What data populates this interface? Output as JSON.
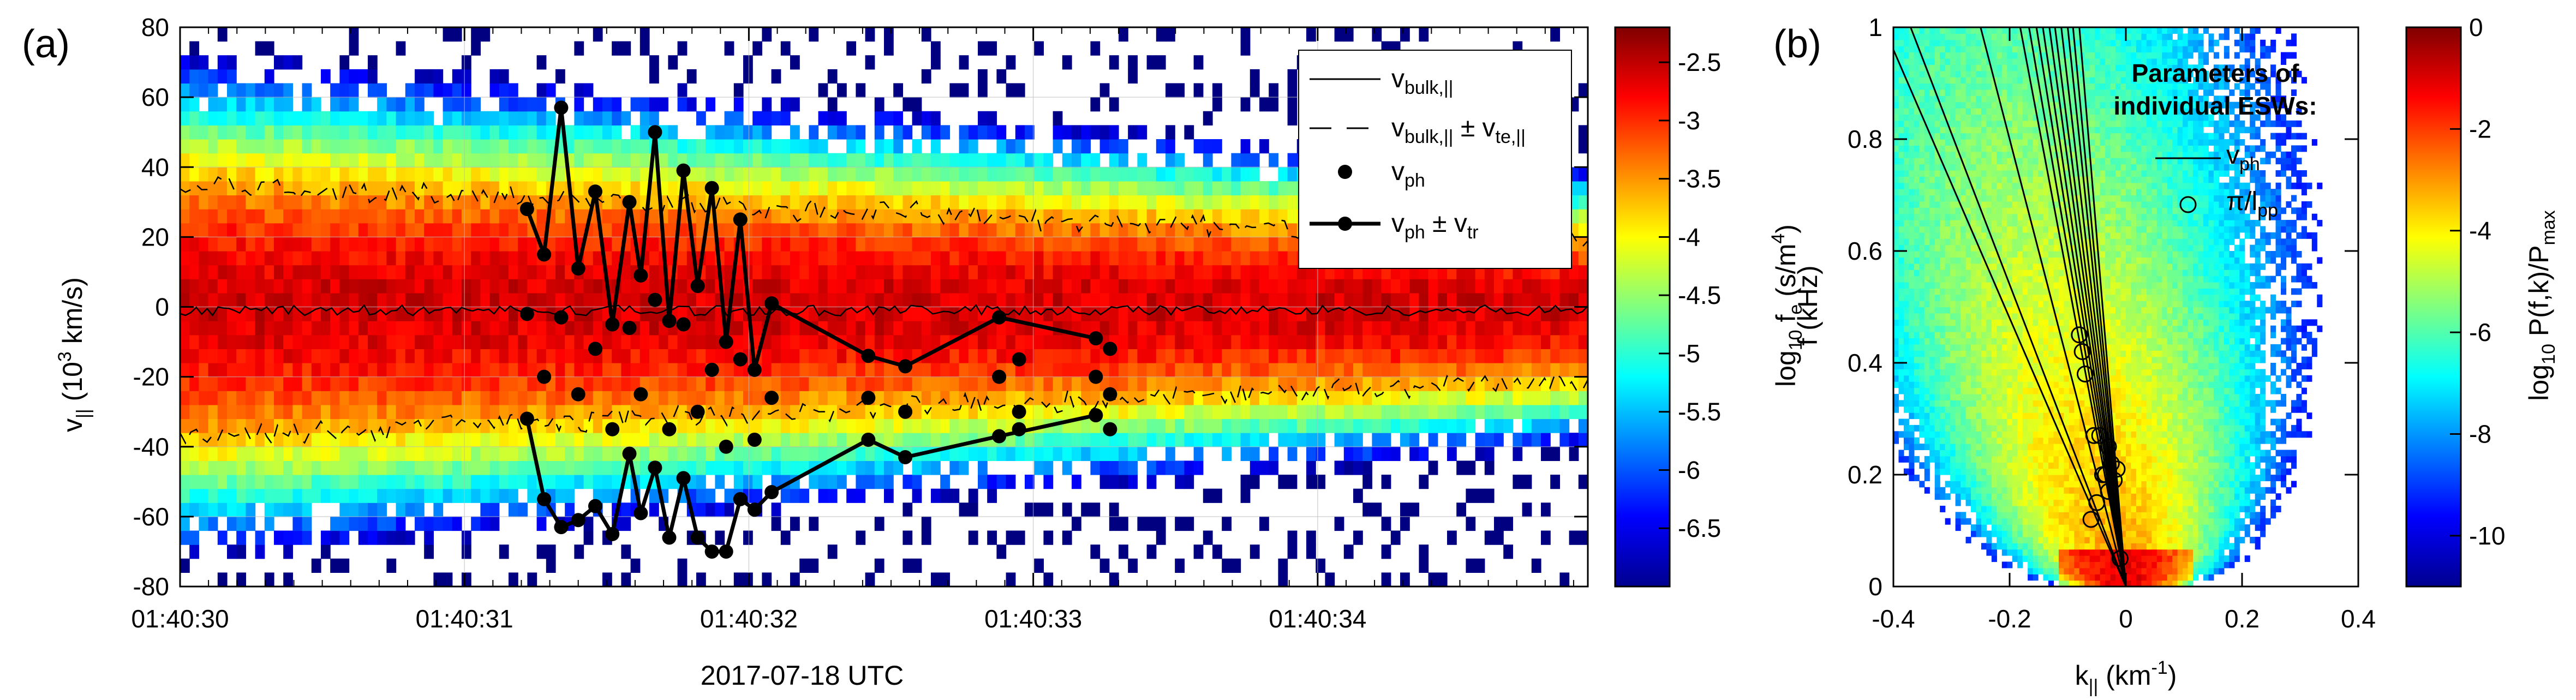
{
  "panels": {
    "a": "(a)",
    "b": "(b)"
  },
  "chart_data": [
    {
      "type": "heatmap",
      "panel": "(a)",
      "title": "",
      "xlabel": "2017-07-18 UTC",
      "ylabel": "v|| (10^3 km/s)",
      "ylabel_parts": {
        "main": "v",
        "sub": "||",
        "rest": " (10",
        "sup": "3",
        "tail": " km/s)"
      },
      "x_tick_labels": [
        "01:40:30",
        "01:40:31",
        "01:40:32",
        "01:40:33",
        "01:40:34"
      ],
      "x_tick_values_s": [
        0,
        1,
        2,
        3,
        4
      ],
      "xlim_s": [
        0,
        4.95
      ],
      "ylim": [
        -80,
        80
      ],
      "y_ticks": [
        -80,
        -60,
        -40,
        -20,
        0,
        20,
        40,
        60,
        80
      ],
      "grid": true,
      "colorbar": {
        "label": "log10 fe (s/m^4)",
        "label_parts": {
          "pre": "log",
          "presub": "10",
          "mid": " f",
          "midsub": "e",
          "rest": " (s/m",
          "sup": "4",
          "tail": ")"
        },
        "range": [
          -7.0,
          -2.2
        ],
        "ticks": [
          -2.5,
          -3,
          -3.5,
          -4,
          -4.5,
          -5,
          -5.5,
          -6,
          -6.5
        ],
        "tick_labels": [
          "-2.5",
          "-3",
          "-3.5",
          "-4",
          "-4.5",
          "-5",
          "-5.5",
          "-6",
          "-6.5"
        ],
        "colormap": "jet"
      },
      "legend": {
        "placement": "top-right",
        "entries": [
          {
            "style": "solid-thin",
            "label": "v",
            "sub": "bulk,||"
          },
          {
            "style": "dashed",
            "label": "v",
            "sub": "bulk,||",
            "mid": " ± v",
            "sub2": "te,||"
          },
          {
            "style": "dot",
            "label": "v",
            "sub": "ph"
          },
          {
            "style": "line-dot",
            "label": "v",
            "sub": "ph",
            "mid": " ± v",
            "sub2": "tr"
          }
        ]
      },
      "bulk_velocity_mean": -1,
      "thermal_velocity_early": 36,
      "thermal_velocity_late": 20,
      "esw_vph_pm_vtr": [
        {
          "t": 1.22,
          "vph": -2,
          "vtr": 30
        },
        {
          "t": 1.28,
          "vph": -20,
          "vtr": 35
        },
        {
          "t": 1.34,
          "vph": -3,
          "vtr": 60
        },
        {
          "t": 1.4,
          "vph": -25,
          "vtr": 36
        },
        {
          "t": 1.46,
          "vph": -12,
          "vtr": 45
        },
        {
          "t": 1.52,
          "vph": -35,
          "vtr": 30
        },
        {
          "t": 1.58,
          "vph": -6,
          "vtr": 36
        },
        {
          "t": 1.62,
          "vph": -25,
          "vtr": 34
        },
        {
          "t": 1.67,
          "vph": 2,
          "vtr": 48
        },
        {
          "t": 1.72,
          "vph": -35,
          "vtr": 31
        },
        {
          "t": 1.77,
          "vph": -5,
          "vtr": 44
        },
        {
          "t": 1.82,
          "vph": -30,
          "vtr": 36
        },
        {
          "t": 1.87,
          "vph": -18,
          "vtr": 52
        },
        {
          "t": 1.92,
          "vph": -40,
          "vtr": 30
        },
        {
          "t": 1.97,
          "vph": -15,
          "vtr": 40
        },
        {
          "t": 2.02,
          "vph": -38,
          "vtr": 20
        },
        {
          "t": 2.08,
          "vph": -26,
          "vtr": 27
        },
        {
          "t": 2.42,
          "vph": -26,
          "vtr": 12
        },
        {
          "t": 2.55,
          "vph": -30,
          "vtr": 13
        },
        {
          "t": 2.88,
          "vph": -20,
          "vtr": 17
        },
        {
          "t": 3.22,
          "vph": -20,
          "vtr": 11
        }
      ],
      "esw_dots": [
        {
          "t": 2.95,
          "v": -15
        },
        {
          "t": 2.95,
          "v": -30
        },
        {
          "t": 2.95,
          "v": -35
        },
        {
          "t": 3.27,
          "v": -12
        },
        {
          "t": 3.27,
          "v": -25
        },
        {
          "t": 3.27,
          "v": -35
        }
      ]
    },
    {
      "type": "heatmap",
      "panel": "(b)",
      "title": "",
      "xlabel": "k|| (km^-1)",
      "xlabel_parts": {
        "main": "k",
        "sub": "||",
        "rest": " (km",
        "sup": "-1",
        "tail": ")"
      },
      "ylabel": "f (kHz)",
      "xlim": [
        -0.4,
        0.4
      ],
      "ylim": [
        0,
        1
      ],
      "x_ticks": [
        -0.4,
        -0.2,
        0,
        0.2,
        0.4
      ],
      "x_tick_labels": [
        "-0.4",
        "-0.2",
        "0",
        "0.2",
        "0.4"
      ],
      "y_ticks": [
        0,
        0.2,
        0.4,
        0.6,
        0.8,
        1
      ],
      "y_tick_labels": [
        "0",
        "0.2",
        "0.4",
        "0.6",
        "0.8",
        "1"
      ],
      "colorbar": {
        "label": "log10 P(f,k)/Pmax",
        "label_parts": {
          "pre": "log",
          "presub": "10",
          "mid": " P(f,k)/P",
          "sub": "max"
        },
        "range": [
          -11,
          0
        ],
        "ticks": [
          0,
          -2,
          -4,
          -6,
          -8,
          -10
        ],
        "tick_labels": [
          "0",
          "-2",
          "-4",
          "-6",
          "-8",
          "-10"
        ],
        "colormap": "jet"
      },
      "annotation": [
        "Parameters of",
        "individual ESWs:"
      ],
      "legend": {
        "entries": [
          {
            "style": "line",
            "label": "v",
            "sub": "ph"
          },
          {
            "style": "circle",
            "label": "π/l",
            "sub": "pp"
          }
        ]
      },
      "vph_line_slopes_khz_per_km_inv": [
        -2.4,
        -2.7,
        -4.0,
        -5.5,
        -6.0,
        -6.5,
        -7.0,
        -7.6,
        -8.2,
        -9.0,
        -10.0,
        -11.0,
        -12.5
      ],
      "pi_over_lpp_points": [
        {
          "k": -0.01,
          "f": 0.05
        },
        {
          "k": -0.05,
          "f": 0.15
        },
        {
          "k": -0.06,
          "f": 0.12
        },
        {
          "k": -0.03,
          "f": 0.17
        },
        {
          "k": -0.035,
          "f": 0.2
        },
        {
          "k": -0.025,
          "f": 0.22
        },
        {
          "k": -0.03,
          "f": 0.25
        },
        {
          "k": -0.045,
          "f": 0.27
        },
        {
          "k": -0.055,
          "f": 0.27
        },
        {
          "k": -0.04,
          "f": 0.2
        },
        {
          "k": -0.07,
          "f": 0.38
        },
        {
          "k": -0.075,
          "f": 0.42
        },
        {
          "k": -0.08,
          "f": 0.45
        },
        {
          "k": -0.02,
          "f": 0.19
        },
        {
          "k": -0.015,
          "f": 0.21
        }
      ]
    }
  ]
}
